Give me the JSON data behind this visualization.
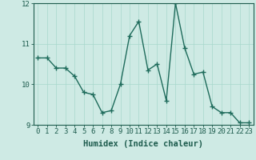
{
  "x": [
    0,
    1,
    2,
    3,
    4,
    5,
    6,
    7,
    8,
    9,
    10,
    11,
    12,
    13,
    14,
    15,
    16,
    17,
    18,
    19,
    20,
    21,
    22,
    23
  ],
  "y": [
    10.65,
    10.65,
    10.4,
    10.4,
    10.2,
    9.8,
    9.75,
    9.3,
    9.35,
    10.0,
    11.2,
    11.55,
    10.35,
    10.5,
    9.6,
    12.0,
    10.9,
    10.25,
    10.3,
    9.45,
    9.3,
    9.3,
    9.05,
    9.05
  ],
  "line_color": "#1e6b5b",
  "marker": "+",
  "marker_size": 4,
  "bg_color": "#ceeae4",
  "grid_color": "#a8d8cc",
  "xlabel": "Humidex (Indice chaleur)",
  "ylim": [
    9.0,
    12.0
  ],
  "xlim": [
    -0.5,
    23.5
  ],
  "yticks": [
    9,
    10,
    11,
    12
  ],
  "xticks": [
    0,
    1,
    2,
    3,
    4,
    5,
    6,
    7,
    8,
    9,
    10,
    11,
    12,
    13,
    14,
    15,
    16,
    17,
    18,
    19,
    20,
    21,
    22,
    23
  ],
  "label_color": "#1e5c4e",
  "tick_color": "#1e5c4e",
  "xlabel_fontsize": 7.5,
  "tick_fontsize": 6.5,
  "linewidth": 1.0,
  "marker_edge_width": 1.0
}
